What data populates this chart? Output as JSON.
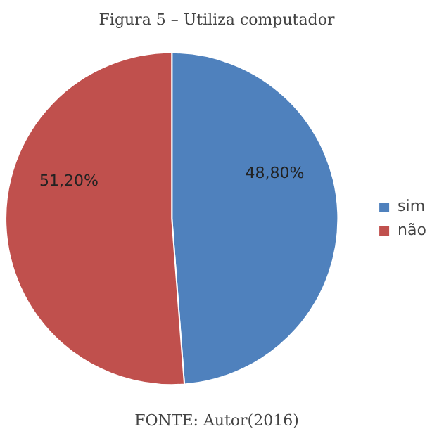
{
  "chart_data": {
    "type": "pie",
    "title": "Figura 5 – Utiliza computador",
    "categories": [
      "sim",
      "não"
    ],
    "values": [
      48.8,
      51.2
    ],
    "colors": [
      "#4f81bd",
      "#c0504d"
    ],
    "value_labels": [
      "48,80%",
      "51,20%"
    ],
    "legend": "right",
    "annotations": [
      "FONTE: Autor(2016)"
    ]
  }
}
